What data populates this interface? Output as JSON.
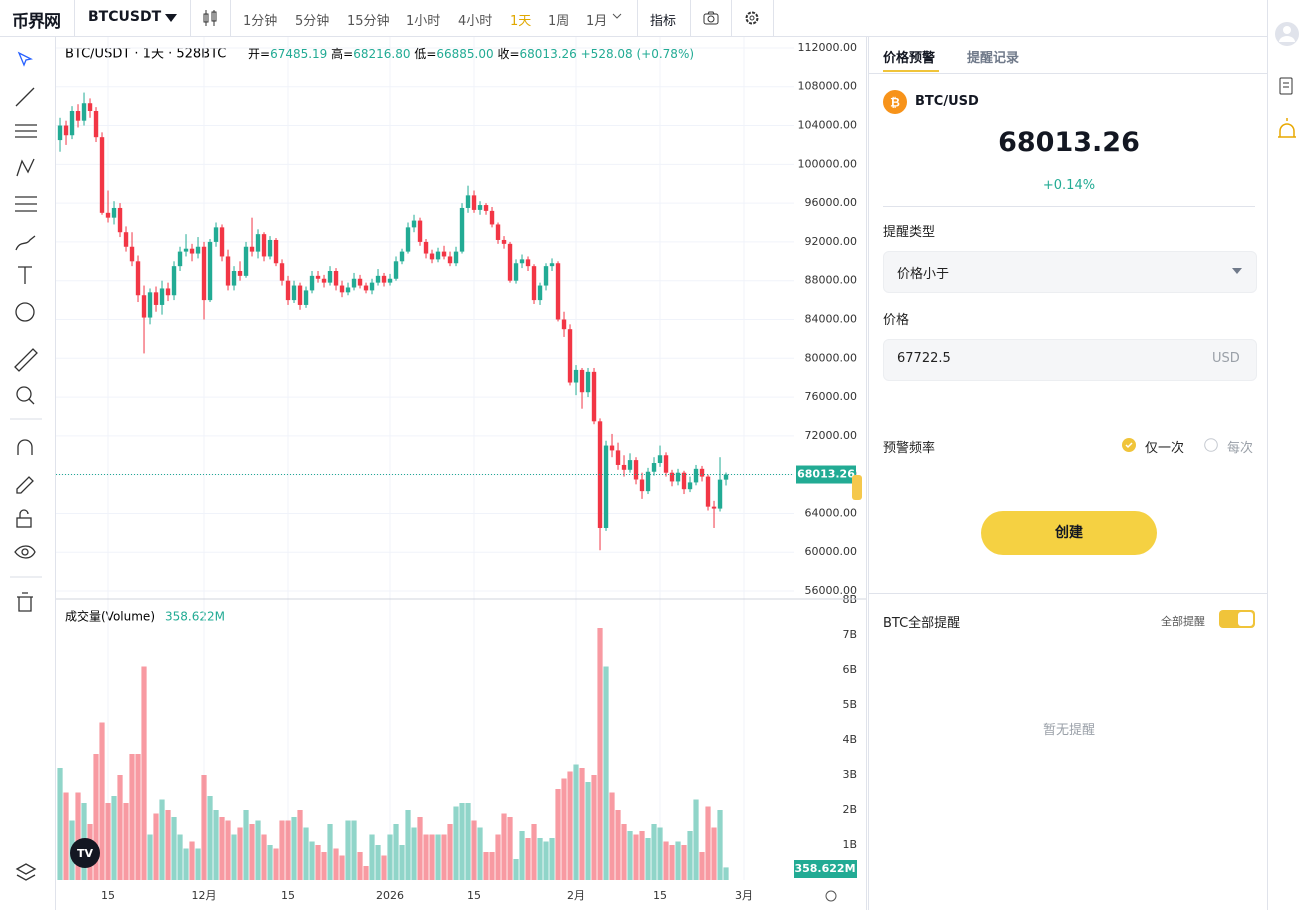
{
  "header": {
    "logo": "币界网",
    "symbol": "BTCUSDT",
    "intervals": [
      "1分钟",
      "5分钟",
      "15分钟",
      "1小时",
      "4小时",
      "1天",
      "1周",
      "1月"
    ],
    "active_interval": 5,
    "indicators": "指标"
  },
  "chart_data": [
    {
      "type": "candlestick",
      "title": "BTC/USDT · 1天 · 528BTC",
      "ohlc": [
        {
          "label": "开=",
          "value": "67485.19"
        },
        {
          "label": "高=",
          "value": "68216.80"
        },
        {
          "label": "低=",
          "value": "66885.00"
        },
        {
          "label": "收=",
          "value": "68013.26"
        }
      ],
      "change": "+528.08 (+0.78%)",
      "up_color": "#22ab94",
      "down_color": "#f23645",
      "last_price": 68013.26,
      "xlim": [
        -0.67,
        134.33
      ],
      "ylim": [
        55280,
        113130
      ],
      "yticks": [
        {
          "value": 112000,
          "label": "112000.00"
        },
        {
          "value": 108000,
          "label": "108000.00"
        },
        {
          "value": 104000,
          "label": "104000.00"
        },
        {
          "value": 100000,
          "label": "100000.00"
        },
        {
          "value": 96000,
          "label": "96000.00"
        },
        {
          "value": 92000,
          "label": "92000.00"
        },
        {
          "value": 88000,
          "label": "88000.00"
        },
        {
          "value": 84000,
          "label": "84000.00"
        },
        {
          "value": 80000,
          "label": "80000.00"
        },
        {
          "value": 76000,
          "label": "76000.00"
        },
        {
          "value": 72000,
          "label": "72000.00"
        },
        {
          "value": 68000,
          "label": "68000.00"
        },
        {
          "value": 64000,
          "label": "64000.00"
        },
        {
          "value": 60000,
          "label": "60000.00"
        },
        {
          "value": 56000,
          "label": "56000.00"
        }
      ],
      "grid": true,
      "candles": [
        [
          102500,
          104800,
          101300,
          104000
        ],
        [
          104000,
          104500,
          102000,
          103000
        ],
        [
          103000,
          106000,
          102600,
          105500
        ],
        [
          105500,
          106200,
          103800,
          104500
        ],
        [
          104500,
          107400,
          104000,
          106300
        ],
        [
          106300,
          106800,
          104800,
          105500
        ],
        [
          105500,
          105900,
          102300,
          102800
        ],
        [
          102800,
          103300,
          94800,
          95000
        ],
        [
          95000,
          97300,
          94000,
          94500
        ],
        [
          94500,
          96200,
          93800,
          95500
        ],
        [
          95500,
          96000,
          92500,
          93000
        ],
        [
          93000,
          93600,
          91000,
          91500
        ],
        [
          91500,
          93000,
          89500,
          90000
        ],
        [
          90000,
          90600,
          85800,
          86500
        ],
        [
          86500,
          87500,
          80500,
          84200
        ],
        [
          84200,
          87200,
          83500,
          86800
        ],
        [
          86800,
          87400,
          84800,
          85500
        ],
        [
          85500,
          88000,
          84500,
          87200
        ],
        [
          87200,
          87800,
          85900,
          86500
        ],
        [
          86500,
          90000,
          86000,
          89500
        ],
        [
          89500,
          91500,
          89000,
          91000
        ],
        [
          91000,
          92800,
          90500,
          91300
        ],
        [
          91300,
          91800,
          90000,
          90800
        ],
        [
          90800,
          92500,
          90300,
          91500
        ],
        [
          91500,
          92000,
          84000,
          86000
        ],
        [
          86000,
          92300,
          85800,
          92000
        ],
        [
          92000,
          94000,
          91500,
          93500
        ],
        [
          93500,
          93800,
          90000,
          90500
        ],
        [
          90500,
          91200,
          87000,
          87500
        ],
        [
          87500,
          89500,
          87000,
          89000
        ],
        [
          89000,
          90000,
          88000,
          88500
        ],
        [
          88500,
          92000,
          88300,
          91500
        ],
        [
          91500,
          94500,
          90500,
          91000
        ],
        [
          91000,
          93300,
          90300,
          92800
        ],
        [
          92800,
          93000,
          90000,
          90500
        ],
        [
          90500,
          92600,
          90200,
          92200
        ],
        [
          92200,
          92400,
          89500,
          89800
        ],
        [
          89800,
          90200,
          87500,
          88000
        ],
        [
          88000,
          88500,
          85500,
          86000
        ],
        [
          86000,
          88000,
          85700,
          87500
        ],
        [
          87500,
          87800,
          85000,
          85500
        ],
        [
          85500,
          87400,
          85200,
          87000
        ],
        [
          87000,
          89000,
          86700,
          88500
        ],
        [
          88500,
          89000,
          87800,
          88200
        ],
        [
          88200,
          88600,
          87300,
          87800
        ],
        [
          87800,
          89500,
          87500,
          89000
        ],
        [
          89000,
          89300,
          87000,
          87500
        ],
        [
          87500,
          88000,
          86300,
          86800
        ],
        [
          86800,
          87800,
          86500,
          87300
        ],
        [
          87300,
          88800,
          87000,
          88200
        ],
        [
          88200,
          88600,
          87200,
          87500
        ],
        [
          87500,
          87800,
          86700,
          87000
        ],
        [
          87000,
          88200,
          86600,
          87800
        ],
        [
          87800,
          89200,
          87500,
          88500
        ],
        [
          88500,
          88800,
          87400,
          87800
        ],
        [
          87800,
          88700,
          87500,
          88200
        ],
        [
          88200,
          90500,
          88000,
          90000
        ],
        [
          90000,
          91300,
          89700,
          91000
        ],
        [
          91000,
          94000,
          90800,
          93500
        ],
        [
          93500,
          94800,
          93000,
          94200
        ],
        [
          94200,
          94500,
          91600,
          92000
        ],
        [
          92000,
          92300,
          90300,
          90800
        ],
        [
          90800,
          91200,
          89800,
          90200
        ],
        [
          90200,
          91400,
          89900,
          91000
        ],
        [
          91000,
          91600,
          90200,
          90500
        ],
        [
          90500,
          91000,
          89500,
          89800
        ],
        [
          89800,
          91500,
          89500,
          91000
        ],
        [
          91000,
          96000,
          90800,
          95500
        ],
        [
          95500,
          97800,
          95000,
          96800
        ],
        [
          96800,
          97300,
          95000,
          95300
        ],
        [
          95300,
          96200,
          94800,
          95800
        ],
        [
          95800,
          96000,
          94800,
          95200
        ],
        [
          95200,
          95600,
          93500,
          93800
        ],
        [
          93800,
          94000,
          91800,
          92200
        ],
        [
          92200,
          92600,
          91300,
          91800
        ],
        [
          91800,
          92000,
          87800,
          88000
        ],
        [
          88000,
          90200,
          87700,
          89800
        ],
        [
          89800,
          90700,
          89300,
          90200
        ],
        [
          90200,
          90500,
          89000,
          89500
        ],
        [
          89500,
          89700,
          85600,
          86000
        ],
        [
          86000,
          87800,
          85500,
          87500
        ],
        [
          87500,
          89800,
          87000,
          89500
        ],
        [
          89500,
          90300,
          89000,
          89800
        ],
        [
          89800,
          90000,
          83800,
          84000
        ],
        [
          84000,
          84800,
          82200,
          83000
        ],
        [
          83000,
          83500,
          77200,
          77500
        ],
        [
          77500,
          79300,
          76200,
          78800
        ],
        [
          78800,
          79000,
          74800,
          76500
        ],
        [
          76500,
          79000,
          76000,
          78600
        ],
        [
          78600,
          79000,
          73200,
          73500
        ],
        [
          73500,
          73800,
          60200,
          62500
        ],
        [
          62500,
          71500,
          62200,
          71000
        ],
        [
          71000,
          72200,
          69800,
          70500
        ],
        [
          70500,
          71300,
          68500,
          69000
        ],
        [
          69000,
          70000,
          67800,
          68500
        ],
        [
          68500,
          70200,
          68200,
          69500
        ],
        [
          69500,
          69800,
          67000,
          67500
        ],
        [
          67500,
          68200,
          65500,
          66300
        ],
        [
          66300,
          68700,
          66000,
          68300
        ],
        [
          68300,
          69800,
          67900,
          69200
        ],
        [
          69200,
          71000,
          68800,
          70000
        ],
        [
          70000,
          70300,
          67800,
          68200
        ],
        [
          68200,
          68500,
          66800,
          67300
        ],
        [
          67300,
          68600,
          66900,
          68200
        ],
        [
          68200,
          68400,
          66000,
          66500
        ],
        [
          66500,
          67800,
          66200,
          67200
        ],
        [
          67200,
          69000,
          66900,
          68600
        ],
        [
          68600,
          68900,
          67300,
          67800
        ],
        [
          67800,
          68000,
          64300,
          64700
        ],
        [
          64700,
          65300,
          62500,
          64500
        ],
        [
          64500,
          69800,
          64200,
          67485.19
        ],
        [
          67485.19,
          68216.8,
          66885,
          68013.26
        ]
      ]
    },
    {
      "type": "bar",
      "title": "成交量(Volume)",
      "last_value": {
        "value": 358622000,
        "label": "358.622M"
      },
      "xlim": [
        -0.67,
        134.33
      ],
      "ylim": [
        0,
        8000000000
      ],
      "yticks": [
        {
          "value": 1000000000,
          "label": "1B"
        },
        {
          "value": 2000000000,
          "label": "2B"
        },
        {
          "value": 3000000000,
          "label": "3B"
        },
        {
          "value": 4000000000,
          "label": "4B"
        },
        {
          "value": 5000000000,
          "label": "5B"
        },
        {
          "value": 6000000000,
          "label": "6B"
        },
        {
          "value": 7000000000,
          "label": "7B"
        },
        {
          "value": 8000000000,
          "label": "8B"
        }
      ],
      "xticks": [
        {
          "value": 8,
          "label": "15"
        },
        {
          "value": 24,
          "label": "12月"
        },
        {
          "value": 38,
          "label": "15"
        },
        {
          "value": 55,
          "label": "2026"
        },
        {
          "value": 69,
          "label": "15"
        },
        {
          "value": 86,
          "label": "2月"
        },
        {
          "value": 100,
          "label": "15"
        },
        {
          "value": 114,
          "label": "3月"
        }
      ],
      "values": [
        3200000000.0,
        2500000000.0,
        1700000000.0,
        2500000000.0,
        2200000000.0,
        1600000000.0,
        3600000000.0,
        4500000000.0,
        2200000000.0,
        2400000000.0,
        3000000000.0,
        2200000000.0,
        3600000000.0,
        3600000000.0,
        6100000000.0,
        1300000000.0,
        1900000000.0,
        2300000000.0,
        2000000000.0,
        1800000000.0,
        1300000000.0,
        900000000.0,
        1100000000.0,
        900000000.0,
        3000000000.0,
        2400000000.0,
        2000000000.0,
        1800000000.0,
        1700000000.0,
        1300000000.0,
        1500000000.0,
        2000000000.0,
        1600000000.0,
        1700000000.0,
        1300000000.0,
        1000000000.0,
        900000000.0,
        1700000000.0,
        1700000000.0,
        1800000000.0,
        2000000000.0,
        1500000000.0,
        1100000000.0,
        1000000000.0,
        800000000.0,
        1600000000.0,
        900000000.0,
        700000000.0,
        1700000000.0,
        1700000000.0,
        800000000.0,
        400000000.0,
        1300000000.0,
        1000000000.0,
        700000000.0,
        1300000000.0,
        1600000000.0,
        1000000000.0,
        2000000000.0,
        1500000000.0,
        1800000000.0,
        1300000000.0,
        1300000000.0,
        1300000000.0,
        1300000000.0,
        1600000000.0,
        2100000000.0,
        2200000000.0,
        2200000000.0,
        1700000000.0,
        1500000000.0,
        800000000.0,
        800000000.0,
        1300000000.0,
        1900000000.0,
        1800000000.0,
        600000000.0,
        1400000000.0,
        1200000000.0,
        1600000000.0,
        1200000000.0,
        1100000000.0,
        1200000000.0,
        2600000000.0,
        2900000000.0,
        3100000000.0,
        3300000000.0,
        3200000000.0,
        2800000000.0,
        3000000000.0,
        7200000000.0,
        6100000000.0,
        2500000000.0,
        2000000000.0,
        1600000000.0,
        1400000000.0,
        1300000000.0,
        1400000000.0,
        1200000000.0,
        1600000000.0,
        1500000000.0,
        1100000000.0,
        1000000000.0,
        1100000000.0,
        1000000000.0,
        1400000000.0,
        2300000000.0,
        800000000.0,
        2100000000.0,
        1500000000.0,
        2000000000.0,
        360000000.0
      ]
    }
  ],
  "alert_panel": {
    "tabs": [
      "价格预警",
      "提醒记录"
    ],
    "pair": "BTC/USD",
    "price": "68013.26",
    "change": "+0.14%",
    "type_label": "提醒类型",
    "type_value": "价格小于",
    "price_label": "价格",
    "price_input": "67722.5",
    "currency": "USD",
    "frequency_label": "预警频率",
    "frequency_options": [
      "仅一次",
      "每次"
    ],
    "create": "创建",
    "all_alerts": "BTC全部提醒",
    "all_toggle": "全部提醒",
    "empty": "暂无提醒"
  }
}
